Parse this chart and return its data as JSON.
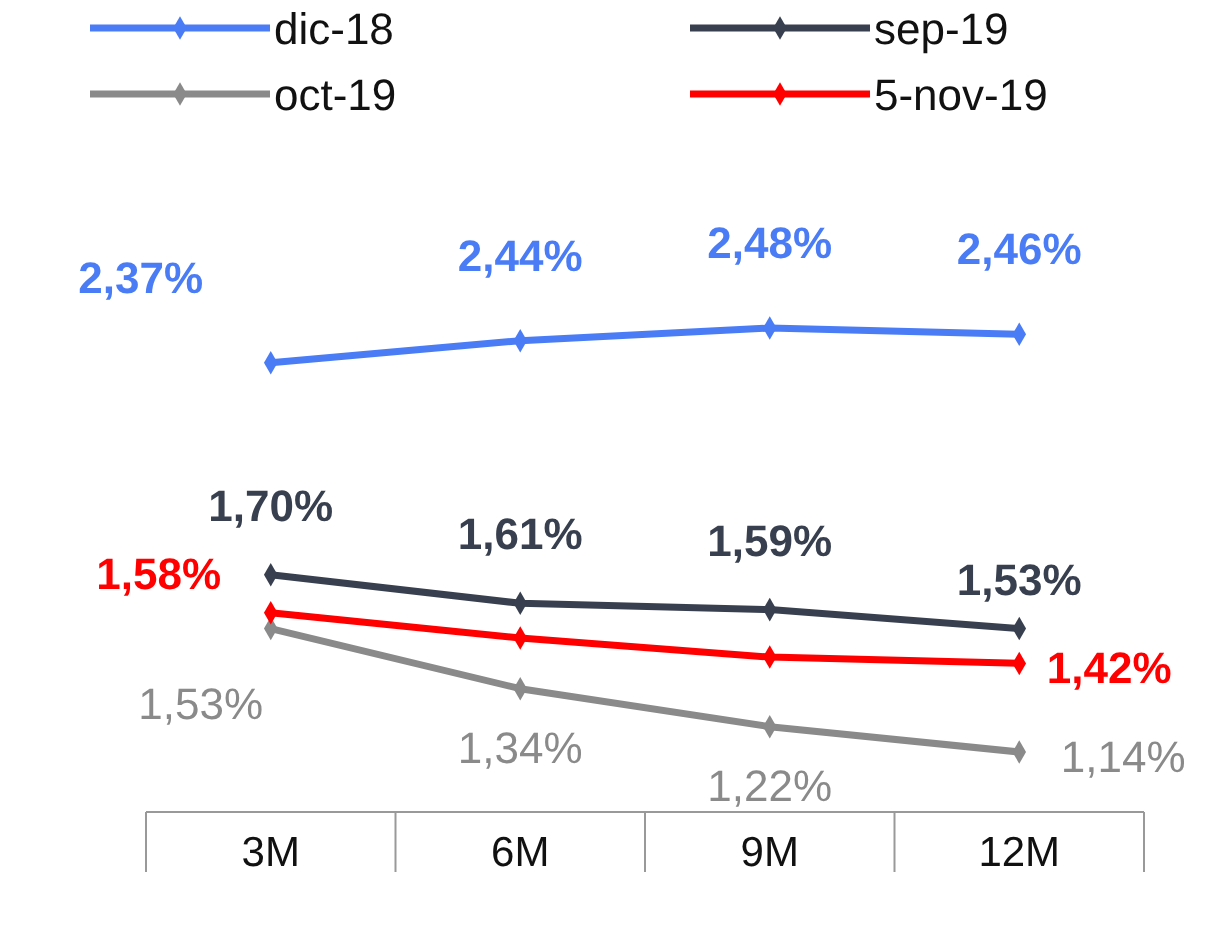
{
  "chart_data": {
    "type": "line",
    "categories": [
      "3M",
      "6M",
      "9M",
      "12M"
    ],
    "tick_labels": "x",
    "legend": "top",
    "marker": "diamond",
    "line_style": "solid",
    "series": [
      {
        "name": "dic-18",
        "color": "#4a7cf6",
        "values": [
          2.37,
          2.44,
          2.48,
          2.46
        ],
        "value_labels": [
          "2,37%",
          "2,44%",
          "2,48%",
          "2,46%"
        ]
      },
      {
        "name": "sep-19",
        "color": "#383f4e",
        "values": [
          1.7,
          1.61,
          1.59,
          1.53
        ],
        "value_labels": [
          "1,70%",
          "1,61%",
          "1,59%",
          "1,53%"
        ]
      },
      {
        "name": "oct-19",
        "color": "#8a8a8a",
        "values": [
          1.53,
          1.34,
          1.22,
          1.14
        ],
        "value_labels": [
          "1,53%",
          "1,34%",
          "1,22%",
          "1,14%"
        ]
      },
      {
        "name": "5-nov-19",
        "color": "#ff0000",
        "values": [
          1.58,
          1.5,
          1.44,
          1.42
        ],
        "value_labels": [
          "1,58%",
          null,
          null,
          "1,42%"
        ]
      }
    ]
  }
}
